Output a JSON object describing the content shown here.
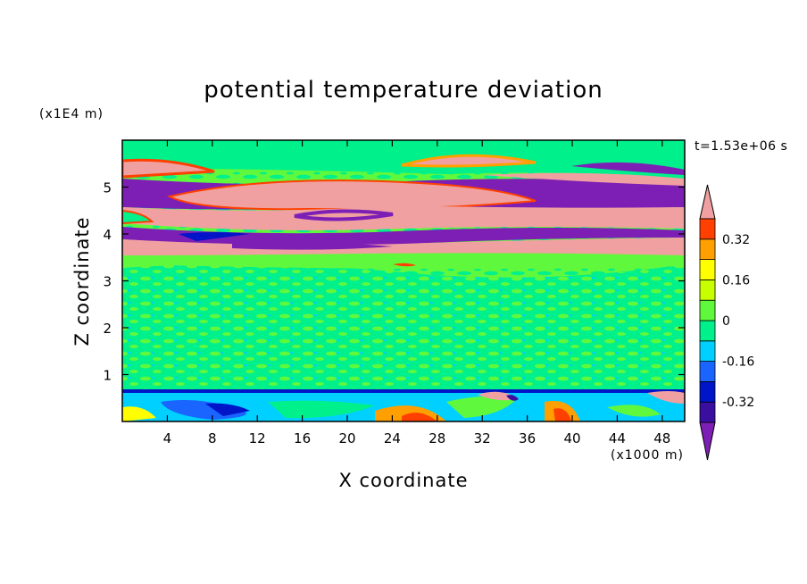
{
  "chart_data": {
    "type": "heatmap",
    "title": "potential temperature deviation",
    "xlabel": "X coordinate",
    "ylabel": "Z coordinate",
    "x_unit_label": "(x1000 m)",
    "y_unit_label": "(x1E4 m)",
    "time_label": "t=1.53e+06 s",
    "xlim": [
      0,
      50
    ],
    "ylim": [
      0,
      6
    ],
    "x_ticks": [
      4,
      8,
      12,
      16,
      20,
      24,
      28,
      32,
      36,
      40,
      44,
      48
    ],
    "y_ticks": [
      1,
      2,
      3,
      4,
      5
    ],
    "colorbar": {
      "tick_labels": [
        "0.32",
        "0.16",
        "0",
        "-0.16",
        "-0.32"
      ],
      "levels": [
        -0.4,
        -0.32,
        -0.24,
        -0.16,
        -0.08,
        0,
        0.08,
        0.16,
        0.24,
        0.32,
        0.4
      ],
      "colors": [
        "#7d1fb5",
        "#3a0fa0",
        "#0014c8",
        "#1a64ff",
        "#00d0ff",
        "#00f08c",
        "#60f83c",
        "#c8ff00",
        "#ffff00",
        "#ffa000",
        "#ff4000",
        "#f0a0a0"
      ]
    },
    "features": [
      {
        "x": [
          0,
          50
        ],
        "z": [
          3.6,
          5.6
        ],
        "value": "alternating bands of -0.4 and 0.4"
      },
      {
        "x": [
          0,
          50
        ],
        "z": [
          0.7,
          3.6
        ],
        "value": "-0.08 to 0.08"
      },
      {
        "x": [
          0,
          50
        ],
        "z": [
          0,
          0.7
        ],
        "value": "-0.32 to 0.4 near surface"
      }
    ]
  }
}
